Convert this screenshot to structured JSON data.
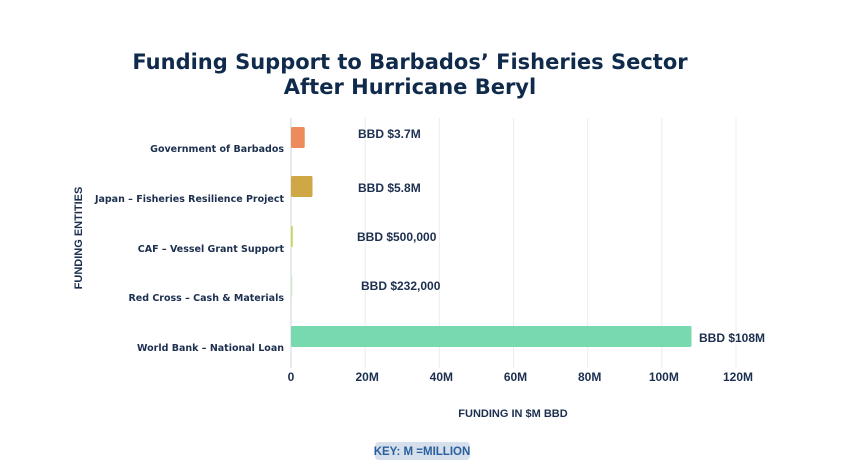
{
  "chart_data": {
    "type": "bar",
    "orientation": "horizontal",
    "title": [
      "Funding Support to Barbados’ Fisheries Sector",
      "After Hurricane Beryl"
    ],
    "xlabel": "FUNDING IN $M BBD",
    "ylabel": "FUNDING ENTITIES",
    "categories": [
      "Government of Barbados",
      "Japan – Fisheries Resilience Project",
      "CAF – Vessel Grant Support",
      "Red Cross – Cash & Materials",
      "World Bank – National Loan"
    ],
    "values": [
      3.7,
      5.8,
      0.5,
      0.232,
      108
    ],
    "value_labels": [
      "BBD $3.7M",
      "BBD $5.8M",
      "BBD $500,000",
      "BBD $232,000",
      "BBD $108M"
    ],
    "colors": [
      "#ee8b5c",
      "#cfa845",
      "#c8d85a",
      "#c9ecc4",
      "#79d9ae"
    ],
    "xlim": [
      0,
      120
    ],
    "xticks": [
      0,
      20,
      40,
      60,
      80,
      100,
      120
    ],
    "xtick_labels": [
      "0",
      "20M",
      "40M",
      "60M",
      "80M",
      "100M",
      "120M"
    ],
    "grid": true,
    "key": "KEY: M =MILLION"
  }
}
